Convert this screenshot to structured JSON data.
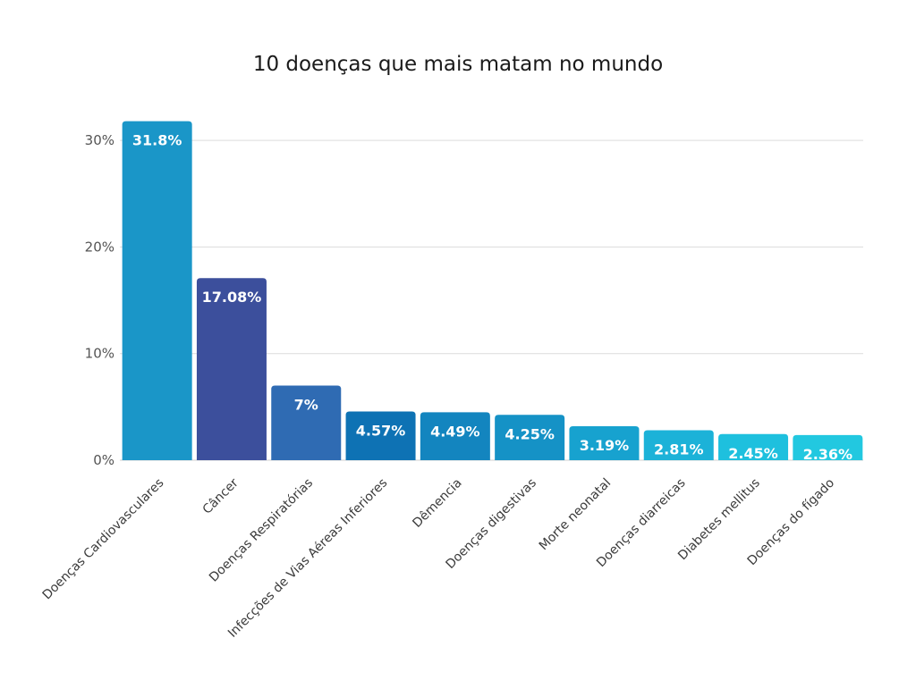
{
  "chart_data": {
    "type": "bar",
    "title": "10 doenças que mais matam no mundo",
    "xlabel": "",
    "ylabel": "",
    "ylim": [
      0,
      32
    ],
    "yticks": [
      {
        "value": 0,
        "label": "0%"
      },
      {
        "value": 10,
        "label": "10%"
      },
      {
        "value": 20,
        "label": "20%"
      },
      {
        "value": 30,
        "label": "30%"
      }
    ],
    "grid": true,
    "legend": "none",
    "categories": [
      "Doenças Cardiovasculares",
      "Câncer",
      "Doenças Respiratórias",
      "Infecções de Vias Aéreas Inferiores",
      "Dêmencia",
      "Doenças digestivas",
      "Morte neonatal",
      "Doenças diarreicas",
      "Diabetes mellitus",
      "Doenças do fígado"
    ],
    "values": [
      31.8,
      17.08,
      7,
      4.57,
      4.49,
      4.25,
      3.19,
      2.81,
      2.45,
      2.36
    ],
    "data_labels": [
      "31.8%",
      "17.08%",
      "7%",
      "4.57%",
      "4.49%",
      "4.25%",
      "3.19%",
      "2.81%",
      "2.45%",
      "2.36%"
    ],
    "colors": [
      "#1a96c8",
      "#3c4f9c",
      "#2f6bb3",
      "#0e72b4",
      "#1385bf",
      "#1592c6",
      "#17a2cf",
      "#1cb2d8",
      "#1ec0de",
      "#22c8e0"
    ]
  }
}
